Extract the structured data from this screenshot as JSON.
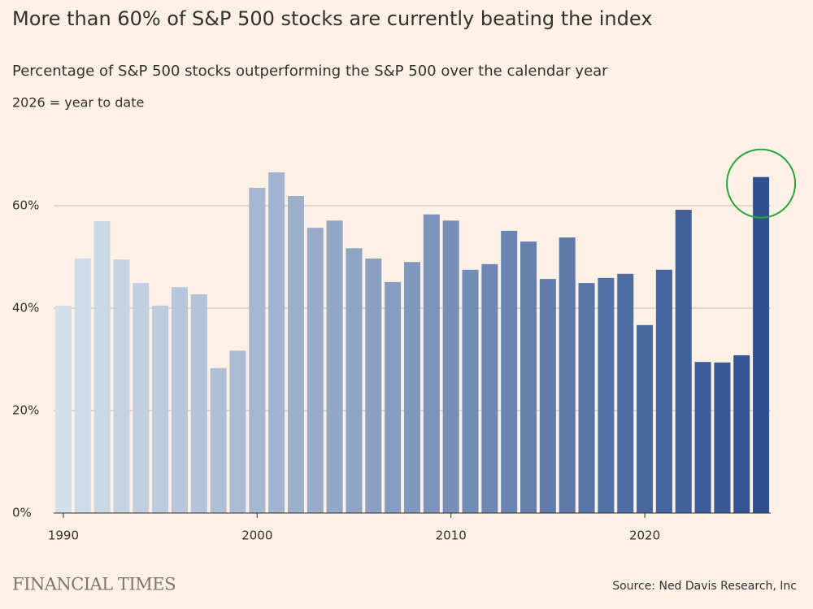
{
  "chart_data": {
    "type": "bar",
    "title": "More than 60% of S&P 500 stocks are currently beating the index",
    "subtitle": "Percentage of S&P 500 stocks outperforming the S&P 500 over the calendar year",
    "note": "2026 = year to date",
    "source": "Source: Ned Davis Research, Inc",
    "publisher": "FINANCIAL TIMES",
    "x": [
      1990,
      1991,
      1992,
      1993,
      1994,
      1995,
      1996,
      1997,
      1998,
      1999,
      2000,
      2001,
      2002,
      2003,
      2004,
      2005,
      2006,
      2007,
      2008,
      2009,
      2010,
      2011,
      2012,
      2013,
      2014,
      2015,
      2016,
      2017,
      2018,
      2019,
      2020,
      2021,
      2022,
      2023,
      2024,
      2025,
      2026
    ],
    "values": [
      40.5,
      49.7,
      57.0,
      49.5,
      44.9,
      40.5,
      44.1,
      42.7,
      28.3,
      31.7,
      63.5,
      66.5,
      61.9,
      55.7,
      57.1,
      51.7,
      49.7,
      45.1,
      49.0,
      58.3,
      57.1,
      47.5,
      48.6,
      55.1,
      53.0,
      45.7,
      53.8,
      44.9,
      45.9,
      46.7,
      36.7,
      47.5,
      59.2,
      29.5,
      29.4,
      30.8,
      65.6
    ],
    "color_range": [
      "#d3dfea",
      "#2f5190"
    ],
    "xlim": [
      1989.5,
      2026.5
    ],
    "xticks": [
      1990,
      2000,
      2010,
      2020
    ],
    "ylim": [
      0,
      70
    ],
    "yticks": [
      {
        "value": 0,
        "label": "0%"
      },
      {
        "value": 20,
        "label": "20%"
      },
      {
        "value": 40,
        "label": "40%"
      },
      {
        "value": 60,
        "label": "60%"
      }
    ],
    "grid": true
  }
}
